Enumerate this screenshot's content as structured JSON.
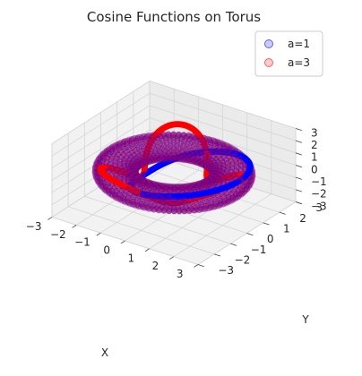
{
  "chart_data": {
    "type": "scatter",
    "projection": "3d",
    "title": "Cosine Functions on Torus",
    "xlabel": "X",
    "ylabel": "Y",
    "zlabel": "",
    "xlim": [
      -3,
      3
    ],
    "ylim": [
      -3,
      3
    ],
    "zlim": [
      -3,
      3
    ],
    "x_ticks": [
      -3,
      -2,
      -1,
      0,
      1,
      2,
      3
    ],
    "y_ticks": [
      -3,
      -2,
      -1,
      0,
      1,
      2,
      3
    ],
    "z_ticks": [
      -3,
      -2,
      -1,
      0,
      1,
      2,
      3
    ],
    "grid": true,
    "legend_position": "top-right",
    "torus": {
      "major_radius": 2,
      "minor_radius": 0.7
    },
    "series": [
      {
        "name": "a=1",
        "color": "#0000ff",
        "alpha": 0.2,
        "curve": "z = cos(a*theta)",
        "a": 1
      },
      {
        "name": "a=3",
        "color": "#ff0000",
        "alpha": 0.2,
        "curve": "z = cos(a*theta)",
        "a": 3
      }
    ]
  }
}
